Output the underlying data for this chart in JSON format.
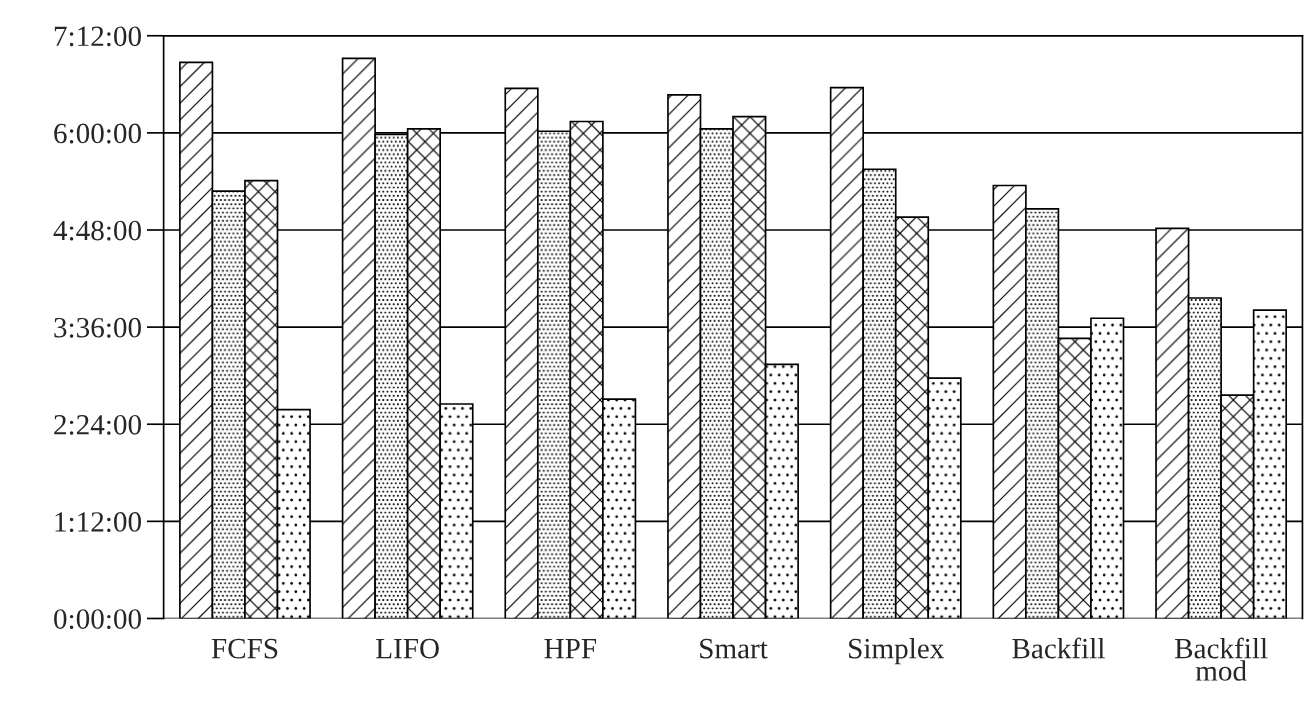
{
  "chart_data": {
    "type": "bar",
    "categories": [
      "FCFS",
      "LIFO",
      "HPF",
      "Smart",
      "Simplex",
      "Backfill",
      "Backfill\nmod"
    ],
    "series": [
      {
        "color": "#000000",
        "values": [
          6.87,
          6.92,
          6.55,
          6.47,
          6.56,
          5.35,
          4.82
        ]
      },
      {
        "color": "#000000",
        "values": [
          5.28,
          5.98,
          6.02,
          6.05,
          5.55,
          5.06,
          3.96
        ]
      },
      {
        "color": "#000000",
        "values": [
          5.41,
          6.05,
          6.14,
          6.2,
          4.96,
          3.46,
          2.76
        ]
      },
      {
        "color": "#000000",
        "values": [
          2.58,
          2.65,
          2.71,
          3.14,
          2.97,
          3.71,
          3.81
        ]
      }
    ],
    "ylim": [
      0,
      7.2
    ],
    "yticks": [
      {
        "value": 0,
        "label": "0:00:00"
      },
      {
        "value": 1.2,
        "label": "1:12:00"
      },
      {
        "value": 2.4,
        "label": "2:24:00"
      },
      {
        "value": 3.6,
        "label": "3:36:00"
      },
      {
        "value": 4.8,
        "label": "4:48:00"
      },
      {
        "value": 6.0,
        "label": "6:00:00"
      },
      {
        "value": 7.2,
        "label": "7:12:00"
      }
    ],
    "grid": "y",
    "legend": false
  }
}
